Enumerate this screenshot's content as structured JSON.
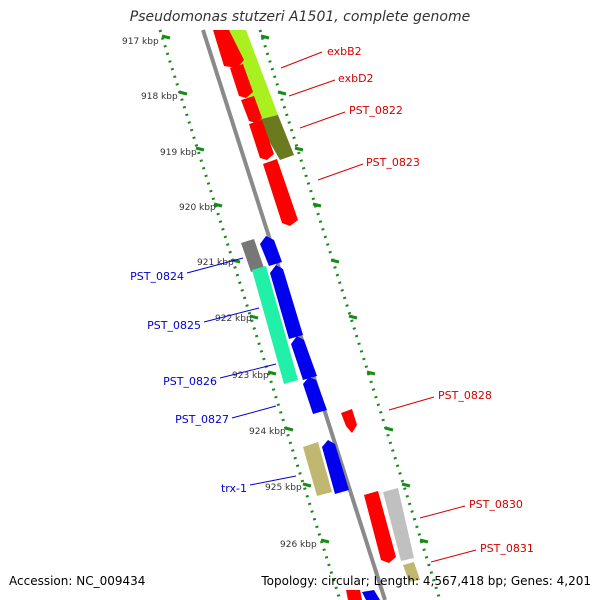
{
  "title": "Pseudomonas stutzeri A1501, complete genome",
  "footer": {
    "accession": "Accession: NC_009434",
    "summary": "Topology: circular; Length: 4,567,418 bp; Genes: 4,201"
  },
  "colors": {
    "backbone": "#8a8a8a",
    "dotted_track": "#1a8a1a",
    "forward_label": "#d40000",
    "reverse_label": "#0000cc",
    "red_gene": "#ff0000",
    "blue_gene": "#0000ee",
    "lime_feature": "#a8f020",
    "olive_feature": "#6b7a1f",
    "teal_feature": "#20f0a8",
    "gray_feature": "#777777",
    "khaki_feature": "#c0b870",
    "light_gray_feature": "#c0c0c0"
  },
  "ruler": [
    {
      "label": "917 kbp"
    },
    {
      "label": "918 kbp"
    },
    {
      "label": "919 kbp"
    },
    {
      "label": "920 kbp"
    },
    {
      "label": "921 kbp"
    },
    {
      "label": "922 kbp"
    },
    {
      "label": "923 kbp"
    },
    {
      "label": "924 kbp"
    },
    {
      "label": "925 kbp"
    },
    {
      "label": "926 kbp"
    }
  ],
  "forward_genes": [
    {
      "label": "exbB2"
    },
    {
      "label": "exbD2"
    },
    {
      "label": "PST_0822"
    },
    {
      "label": "PST_0823"
    },
    {
      "label": "PST_0828"
    },
    {
      "label": "PST_0830"
    },
    {
      "label": "PST_0831"
    }
  ],
  "reverse_genes": [
    {
      "label": "PST_0824"
    },
    {
      "label": "PST_0825"
    },
    {
      "label": "PST_0826"
    },
    {
      "label": "PST_0827"
    },
    {
      "label": "trx-1"
    }
  ]
}
